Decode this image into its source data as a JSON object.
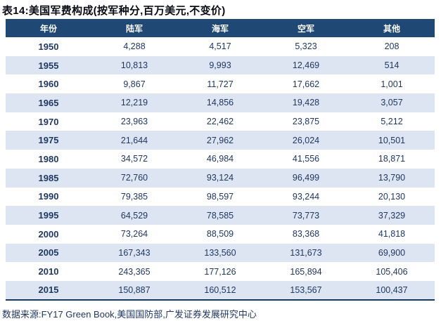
{
  "title": "表14:美国军费构成(按军种分,百万美元,不变价)",
  "footer": {
    "source": "数据来源:FY17 Green Book,美国国防部,广发证券发展研究中心"
  },
  "colors": {
    "header_bg": "#1F4874",
    "header_text": "#FFFFFF",
    "stripe_bg": "#DCE5F1",
    "row_bg": "#FFFFFF",
    "cell_text": "#1F3864",
    "table_border": "#17375E",
    "title_text": "#0A0A14"
  },
  "table": {
    "columns": [
      "年份",
      "陆军",
      "海军",
      "空军",
      "其他"
    ],
    "rows": [
      [
        "1950",
        "4,288",
        "4,517",
        "5,323",
        "208"
      ],
      [
        "1955",
        "10,813",
        "9,993",
        "12,469",
        "514"
      ],
      [
        "1960",
        "9,867",
        "11,727",
        "17,662",
        "1,001"
      ],
      [
        "1965",
        "12,219",
        "14,856",
        "19,428",
        "3,057"
      ],
      [
        "1970",
        "23,963",
        "22,462",
        "23,875",
        "5,212"
      ],
      [
        "1975",
        "21,644",
        "27,962",
        "26,024",
        "10,501"
      ],
      [
        "1980",
        "34,572",
        "46,984",
        "41,556",
        "18,871"
      ],
      [
        "1985",
        "72,760",
        "93,124",
        "96,499",
        "13,790"
      ],
      [
        "1990",
        "79,385",
        "98,597",
        "93,244",
        "20,130"
      ],
      [
        "1995",
        "64,529",
        "78,585",
        "73,773",
        "37,329"
      ],
      [
        "2000",
        "73,264",
        "88,509",
        "83,368",
        "41,818"
      ],
      [
        "2005",
        "167,343",
        "133,560",
        "131,673",
        "69,900"
      ],
      [
        "2010",
        "243,365",
        "177,126",
        "165,894",
        "105,406"
      ],
      [
        "2015",
        "150,887",
        "160,512",
        "153,567",
        "100,437"
      ]
    ]
  },
  "chart_data": {
    "type": "table",
    "title": "美国军费构成(按军种分,百万美元,不变价)",
    "categories": [
      1950,
      1955,
      1960,
      1965,
      1970,
      1975,
      1980,
      1985,
      1990,
      1995,
      2000,
      2005,
      2010,
      2015
    ],
    "series": [
      {
        "name": "陆军",
        "values": [
          4288,
          10813,
          9867,
          12219,
          23963,
          21644,
          34572,
          72760,
          79385,
          64529,
          73264,
          167343,
          243365,
          150887
        ]
      },
      {
        "name": "海军",
        "values": [
          4517,
          9993,
          11727,
          14856,
          22462,
          27962,
          46984,
          93124,
          98597,
          78585,
          88509,
          133560,
          177126,
          160512
        ]
      },
      {
        "name": "空军",
        "values": [
          5323,
          12469,
          17662,
          19428,
          23875,
          26024,
          41556,
          96499,
          93244,
          73773,
          83368,
          131673,
          165894,
          153567
        ]
      },
      {
        "name": "其他",
        "values": [
          208,
          514,
          1001,
          3057,
          5212,
          10501,
          18871,
          13790,
          20130,
          37329,
          41818,
          69900,
          105406,
          100437
        ]
      }
    ],
    "unit": "百万美元(不变价)"
  }
}
